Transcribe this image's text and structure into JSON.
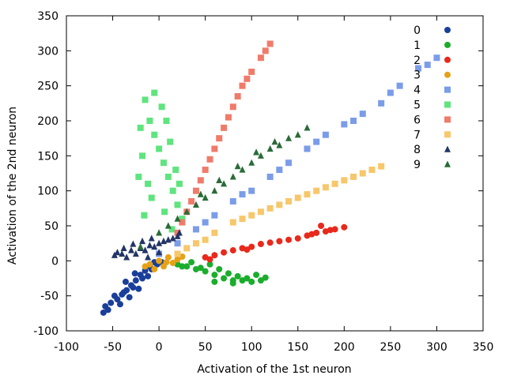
{
  "chart_data": {
    "type": "scatter",
    "xlabel": "Activation of the 1st neuron",
    "ylabel": "Activation of the 2nd neuron",
    "xlim": [
      -100,
      350
    ],
    "ylim": [
      -100,
      350
    ],
    "xticks": [
      -100,
      -50,
      0,
      50,
      100,
      150,
      200,
      250,
      300,
      350
    ],
    "yticks": [
      -100,
      -50,
      0,
      50,
      100,
      150,
      200,
      250,
      300,
      350
    ],
    "xtick_labels": [
      "-100",
      "-50",
      "0",
      "50",
      "100",
      "150",
      "200",
      "250",
      "300",
      "350"
    ],
    "ytick_labels": [
      "-100",
      "-50",
      "0",
      "50",
      "100",
      "150",
      "200",
      "250",
      "300",
      "350"
    ],
    "grid": false,
    "legend_position": "top-right",
    "series": [
      {
        "name": "0",
        "marker": "circle",
        "color": "#1a3f9a",
        "points": [
          [
            -58,
            -65
          ],
          [
            -52,
            -60
          ],
          [
            -45,
            -55
          ],
          [
            -40,
            -48
          ],
          [
            -35,
            -42
          ],
          [
            -30,
            -35
          ],
          [
            -25,
            -28
          ],
          [
            -20,
            -20
          ],
          [
            -15,
            -14
          ],
          [
            -10,
            -8
          ],
          [
            -5,
            -2
          ],
          [
            -48,
            -50
          ],
          [
            -38,
            -45
          ],
          [
            -28,
            -38
          ],
          [
            -18,
            -25
          ],
          [
            -55,
            -70
          ],
          [
            -42,
            -62
          ],
          [
            -32,
            -52
          ],
          [
            -22,
            -40
          ],
          [
            -12,
            -22
          ],
          [
            -8,
            -12
          ],
          [
            -2,
            -5
          ],
          [
            3,
            -2
          ],
          [
            -60,
            -74
          ],
          [
            -36,
            -30
          ],
          [
            -26,
            -18
          ]
        ]
      },
      {
        "name": "1",
        "marker": "circle",
        "color": "#1bad2c",
        "points": [
          [
            20,
            -5
          ],
          [
            30,
            -8
          ],
          [
            40,
            -12
          ],
          [
            50,
            -15
          ],
          [
            60,
            -20
          ],
          [
            70,
            -25
          ],
          [
            80,
            -28
          ],
          [
            90,
            -28
          ],
          [
            100,
            -30
          ],
          [
            110,
            -28
          ],
          [
            115,
            -24
          ],
          [
            45,
            -10
          ],
          [
            55,
            -5
          ],
          [
            65,
            -12
          ],
          [
            75,
            -18
          ],
          [
            85,
            -22
          ],
          [
            95,
            -25
          ],
          [
            105,
            -20
          ],
          [
            60,
            -30
          ],
          [
            80,
            -32
          ],
          [
            35,
            -2
          ],
          [
            25,
            -8
          ]
        ]
      },
      {
        "name": "2",
        "marker": "circle",
        "color": "#e8291b",
        "points": [
          [
            50,
            5
          ],
          [
            70,
            12
          ],
          [
            90,
            18
          ],
          [
            110,
            24
          ],
          [
            130,
            28
          ],
          [
            150,
            32
          ],
          [
            160,
            36
          ],
          [
            170,
            40
          ],
          [
            180,
            42
          ],
          [
            190,
            45
          ],
          [
            200,
            48
          ],
          [
            60,
            8
          ],
          [
            80,
            15
          ],
          [
            100,
            20
          ],
          [
            120,
            26
          ],
          [
            140,
            30
          ],
          [
            165,
            38
          ],
          [
            185,
            44
          ],
          [
            55,
            2
          ],
          [
            95,
            16
          ],
          [
            175,
            50
          ]
        ]
      },
      {
        "name": "3",
        "marker": "circle",
        "color": "#e5a217",
        "points": [
          [
            -10,
            -5
          ],
          [
            0,
            0
          ],
          [
            5,
            -8
          ],
          [
            10,
            5
          ],
          [
            15,
            -3
          ],
          [
            20,
            2
          ],
          [
            -5,
            -12
          ],
          [
            8,
            -2
          ],
          [
            -15,
            -8
          ],
          [
            25,
            6
          ]
        ]
      },
      {
        "name": "4",
        "marker": "square",
        "color": "#7b9ce8",
        "points": [
          [
            0,
            10
          ],
          [
            20,
            25
          ],
          [
            40,
            45
          ],
          [
            60,
            65
          ],
          [
            80,
            85
          ],
          [
            100,
            100
          ],
          [
            120,
            120
          ],
          [
            140,
            140
          ],
          [
            160,
            160
          ],
          [
            180,
            180
          ],
          [
            200,
            195
          ],
          [
            220,
            210
          ],
          [
            240,
            225
          ],
          [
            260,
            250
          ],
          [
            280,
            275
          ],
          [
            300,
            290
          ],
          [
            50,
            55
          ],
          [
            90,
            95
          ],
          [
            130,
            130
          ],
          [
            170,
            170
          ],
          [
            210,
            200
          ],
          [
            250,
            240
          ],
          [
            290,
            280
          ]
        ]
      },
      {
        "name": "5",
        "marker": "square",
        "color": "#5fe47e",
        "points": [
          [
            -15,
            230
          ],
          [
            -10,
            200
          ],
          [
            -5,
            180
          ],
          [
            0,
            160
          ],
          [
            5,
            140
          ],
          [
            10,
            120
          ],
          [
            15,
            100
          ],
          [
            20,
            80
          ],
          [
            25,
            60
          ],
          [
            -20,
            190
          ],
          [
            -18,
            150
          ],
          [
            -12,
            110
          ],
          [
            -8,
            90
          ],
          [
            8,
            200
          ],
          [
            12,
            170
          ],
          [
            18,
            130
          ],
          [
            22,
            110
          ],
          [
            -22,
            120
          ],
          [
            -5,
            240
          ],
          [
            6,
            70
          ],
          [
            -16,
            65
          ],
          [
            14,
            45
          ],
          [
            3,
            220
          ]
        ]
      },
      {
        "name": "6",
        "marker": "square",
        "color": "#f07b6a",
        "points": [
          [
            20,
            40
          ],
          [
            30,
            70
          ],
          [
            40,
            100
          ],
          [
            50,
            130
          ],
          [
            60,
            160
          ],
          [
            70,
            190
          ],
          [
            80,
            220
          ],
          [
            90,
            250
          ],
          [
            100,
            270
          ],
          [
            110,
            290
          ],
          [
            120,
            310
          ],
          [
            35,
            85
          ],
          [
            55,
            145
          ],
          [
            75,
            205
          ],
          [
            95,
            260
          ],
          [
            115,
            300
          ],
          [
            45,
            115
          ],
          [
            65,
            175
          ],
          [
            85,
            235
          ],
          [
            25,
            55
          ]
        ]
      },
      {
        "name": "7",
        "marker": "square",
        "color": "#f7c76b",
        "points": [
          [
            20,
            10
          ],
          [
            40,
            25
          ],
          [
            60,
            40
          ],
          [
            80,
            55
          ],
          [
            100,
            65
          ],
          [
            120,
            75
          ],
          [
            140,
            85
          ],
          [
            160,
            95
          ],
          [
            180,
            105
          ],
          [
            200,
            115
          ],
          [
            220,
            125
          ],
          [
            240,
            135
          ],
          [
            50,
            30
          ],
          [
            90,
            60
          ],
          [
            130,
            80
          ],
          [
            170,
            100
          ],
          [
            210,
            120
          ],
          [
            30,
            18
          ],
          [
            110,
            70
          ],
          [
            150,
            90
          ],
          [
            190,
            110
          ],
          [
            230,
            130
          ]
        ]
      },
      {
        "name": "8",
        "marker": "triangle",
        "color": "#223566",
        "points": [
          [
            -40,
            10
          ],
          [
            -30,
            15
          ],
          [
            -20,
            18
          ],
          [
            -10,
            22
          ],
          [
            0,
            25
          ],
          [
            10,
            30
          ],
          [
            20,
            35
          ],
          [
            -35,
            5
          ],
          [
            -25,
            10
          ],
          [
            -15,
            15
          ],
          [
            -5,
            20
          ],
          [
            -45,
            12
          ],
          [
            5,
            28
          ],
          [
            15,
            32
          ],
          [
            -38,
            18
          ],
          [
            -28,
            24
          ],
          [
            -18,
            28
          ],
          [
            -8,
            32
          ],
          [
            -48,
            8
          ],
          [
            22,
            40
          ],
          [
            -12,
            5
          ],
          [
            0,
            12
          ]
        ]
      },
      {
        "name": "9",
        "marker": "triangle",
        "color": "#2a6b38",
        "points": [
          [
            -20,
            20
          ],
          [
            0,
            40
          ],
          [
            20,
            60
          ],
          [
            40,
            80
          ],
          [
            60,
            100
          ],
          [
            80,
            120
          ],
          [
            100,
            140
          ],
          [
            120,
            160
          ],
          [
            140,
            175
          ],
          [
            150,
            180
          ],
          [
            160,
            190
          ],
          [
            10,
            50
          ],
          [
            30,
            70
          ],
          [
            50,
            90
          ],
          [
            70,
            110
          ],
          [
            90,
            130
          ],
          [
            110,
            150
          ],
          [
            130,
            165
          ],
          [
            45,
            95
          ],
          [
            65,
            115
          ],
          [
            85,
            135
          ],
          [
            105,
            155
          ],
          [
            125,
            170
          ]
        ]
      }
    ]
  }
}
